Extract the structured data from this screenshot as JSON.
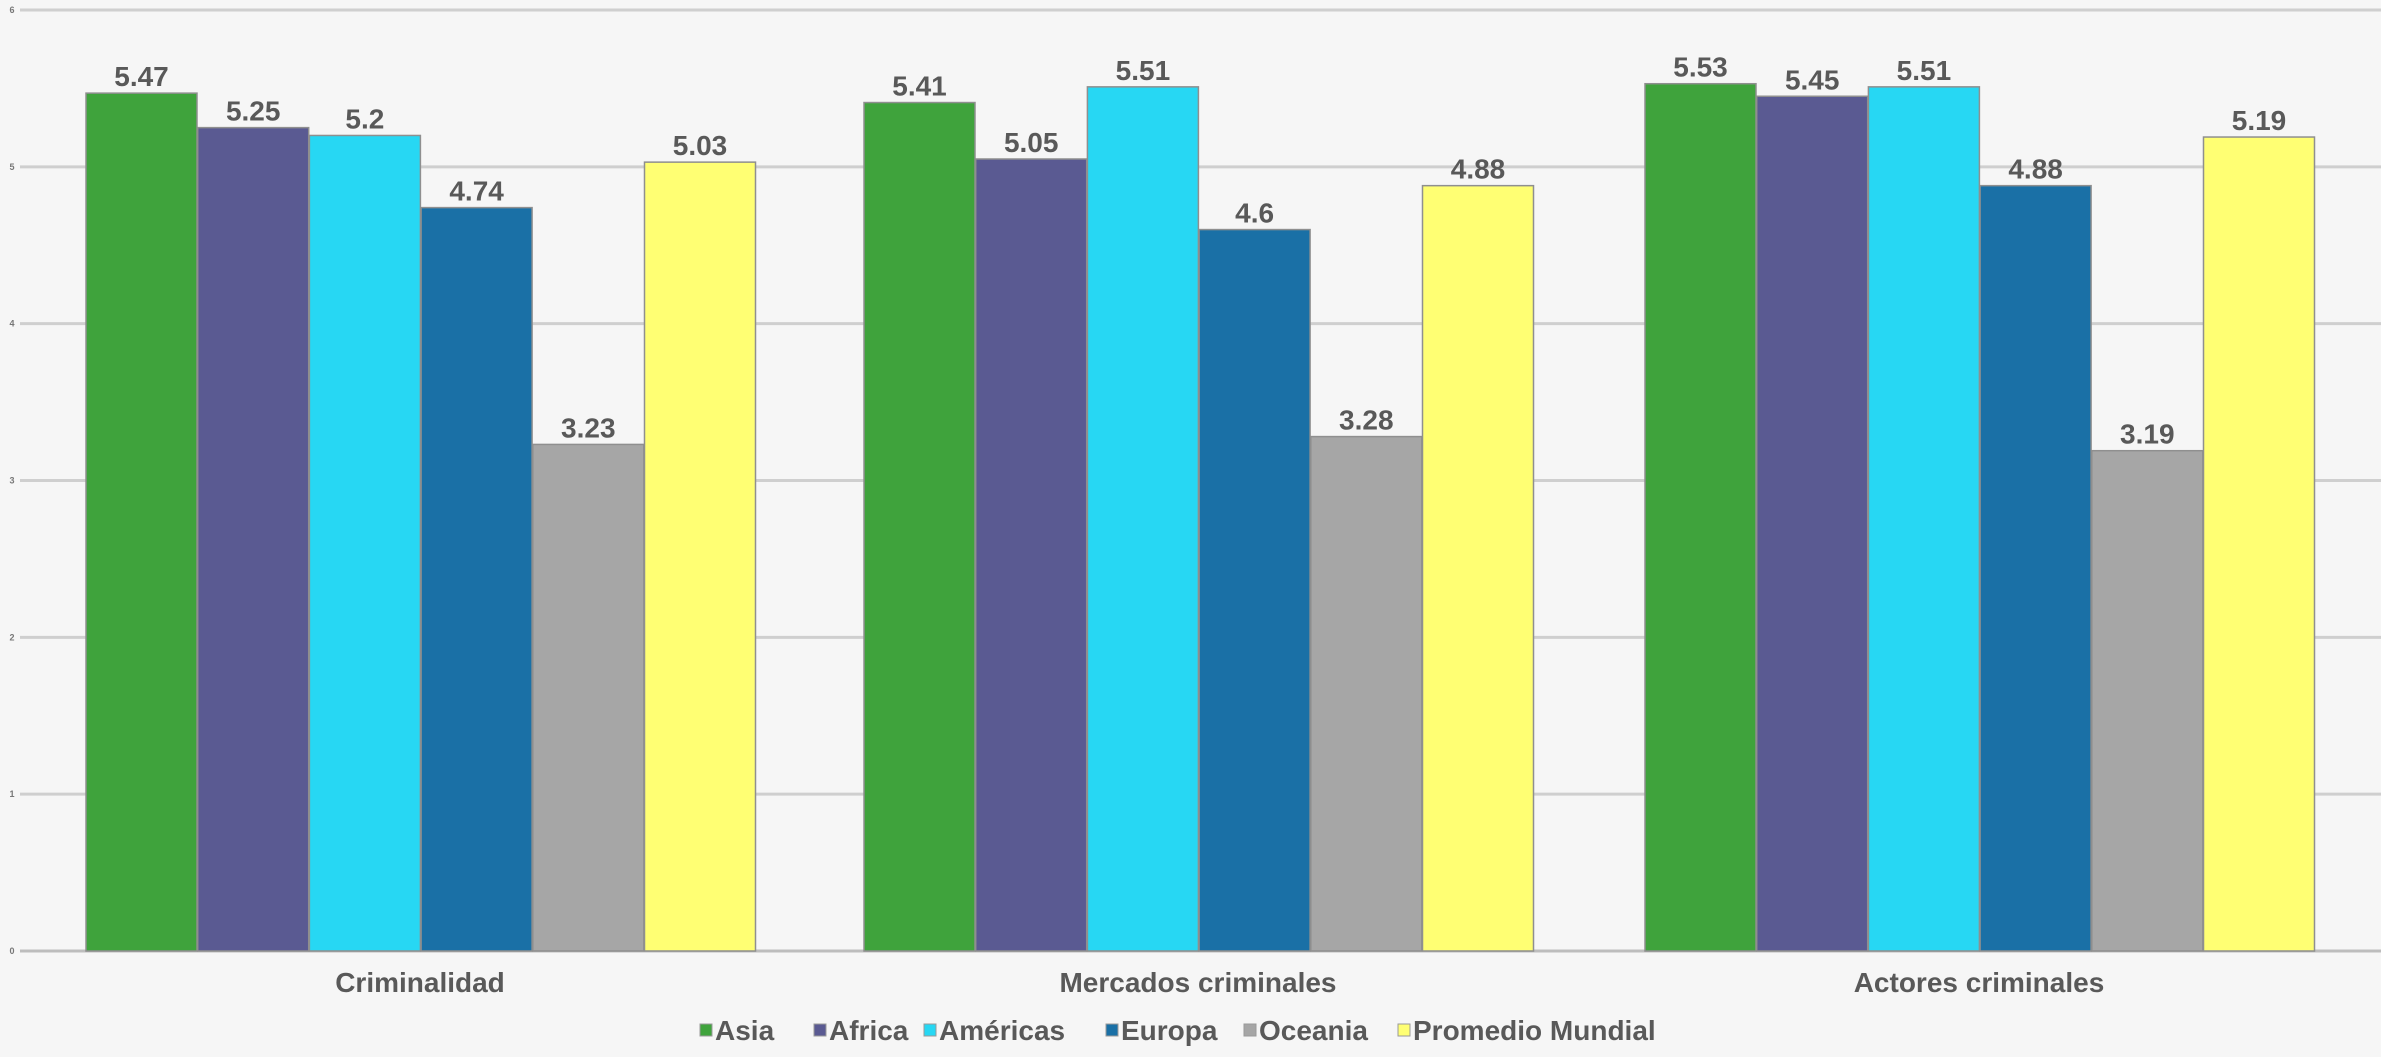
{
  "chart_data": {
    "type": "bar",
    "categories": [
      "Criminalidad",
      "Mercados criminales",
      "Actores criminales"
    ],
    "series": [
      {
        "name": "Asia",
        "color": "#3fa33c",
        "values": [
          5.47,
          5.41,
          5.53
        ]
      },
      {
        "name": "Africa",
        "color": "#5a5a92",
        "values": [
          5.25,
          5.05,
          5.45
        ]
      },
      {
        "name": "Américas",
        "color": "#27d7f3",
        "values": [
          5.2,
          5.51,
          5.51
        ]
      },
      {
        "name": "Europa",
        "color": "#1a70a6",
        "values": [
          4.74,
          4.6,
          4.88
        ]
      },
      {
        "name": "Oceania",
        "color": "#a6a6a6",
        "values": [
          3.23,
          3.28,
          3.19
        ]
      },
      {
        "name": "Promedio Mundial",
        "color": "#ffff73",
        "values": [
          5.03,
          4.88,
          5.19
        ]
      }
    ],
    "data_labels": [
      [
        "5.47",
        "5.41",
        "5.53"
      ],
      [
        "5.25",
        "5.05",
        "5.45"
      ],
      [
        "5.2",
        "5.51",
        "5.51"
      ],
      [
        "4.74",
        "4.6",
        "4.88"
      ],
      [
        "3.23",
        "3.28",
        "3.19"
      ],
      [
        "5.03",
        "4.88",
        "5.19"
      ]
    ],
    "yticks": [
      "0",
      "1",
      "2",
      "3",
      "4",
      "5",
      "6"
    ],
    "ylim": [
      0,
      6
    ],
    "grid": true,
    "legend_position": "bottom",
    "title": "",
    "xlabel": "",
    "ylabel": ""
  }
}
